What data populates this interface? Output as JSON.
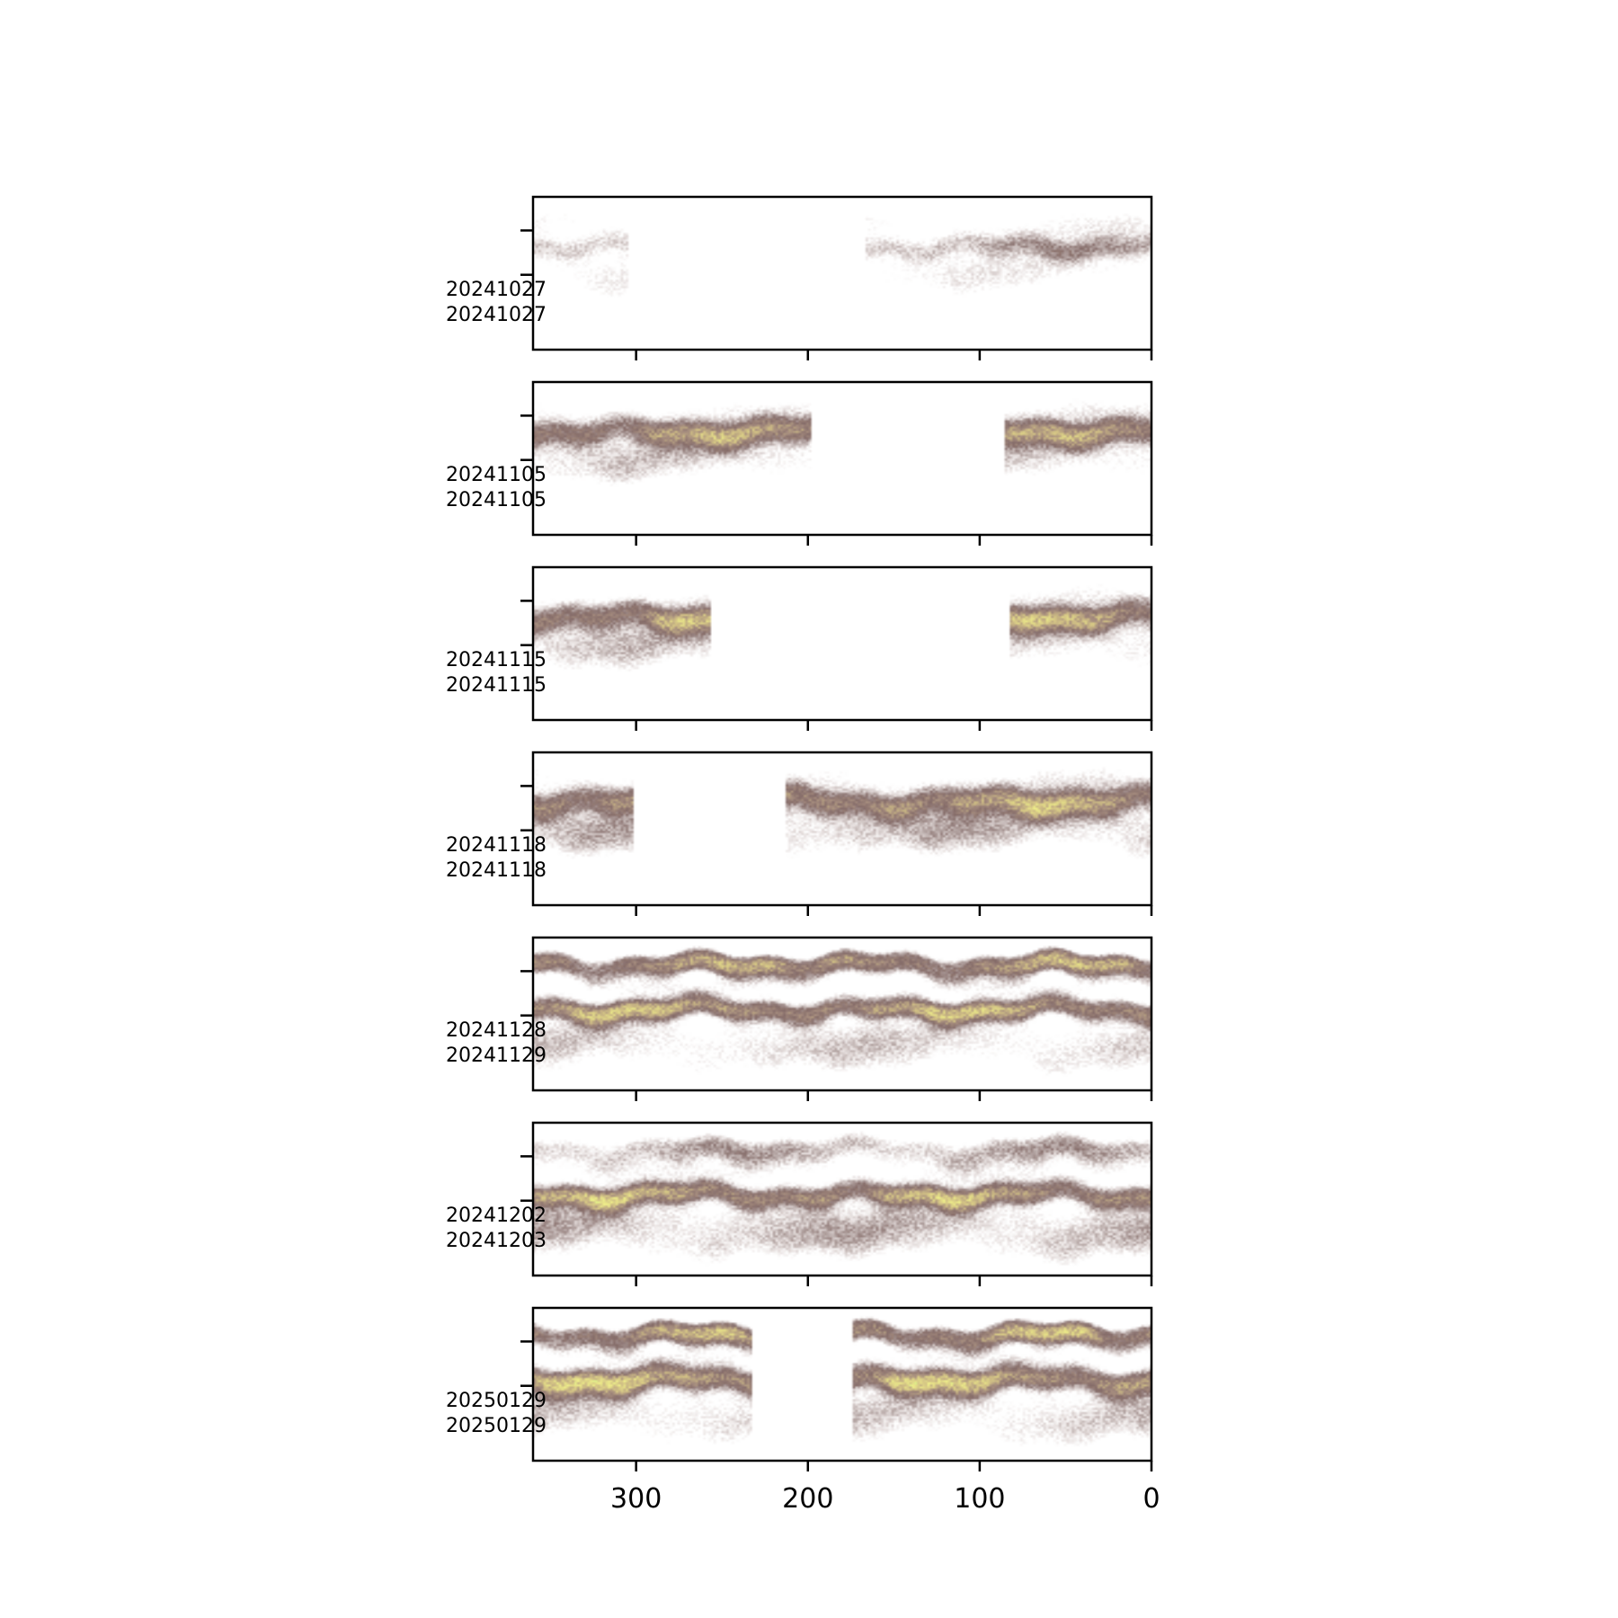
{
  "chart_data": {
    "type": "heatmap",
    "title": "",
    "xlabel": "",
    "ylabel": "",
    "x_axis": {
      "direction": "reversed",
      "xlim": [
        360,
        0
      ],
      "ticks": [
        300,
        200,
        100,
        0
      ],
      "tick_labels": [
        "300",
        "200",
        "100",
        "0"
      ]
    },
    "colormap": "terrain",
    "colormap_stops": [
      "#333399",
      "#0d80e6",
      "#1ad480",
      "#80e888",
      "#f0f08a",
      "#d2c185",
      "#a48b7e",
      "#856c69",
      "#b5a6a4",
      "#e7e0df",
      "#ffffff"
    ],
    "panels": [
      {
        "label_top": "20241027",
        "label_bottom": "20241027",
        "coverage": [
          [
            305,
            360
          ],
          [
            0,
            167
          ]
        ],
        "bands": [
          {
            "level": 0.82,
            "thickness": 0.18
          },
          {
            "level": 0.55,
            "thickness": 0.1
          },
          {
            "level": 0.72,
            "thickness": 0.35
          }
        ]
      },
      {
        "label_top": "20241105",
        "label_bottom": "20241105",
        "coverage": [
          [
            198,
            360
          ],
          [
            0,
            85
          ]
        ],
        "bands": [
          {
            "level": 0.88,
            "thickness": 0.2
          },
          {
            "level": 0.15,
            "thickness": 0.12
          },
          {
            "level": 0.62,
            "thickness": 0.35
          }
        ]
      },
      {
        "label_top": "20241115",
        "label_bottom": "20241115",
        "coverage": [
          [
            257,
            360
          ],
          [
            0,
            83
          ]
        ],
        "bands": [
          {
            "level": 0.9,
            "thickness": 0.2
          },
          {
            "level": 0.12,
            "thickness": 0.12
          },
          {
            "level": 0.6,
            "thickness": 0.35
          }
        ]
      },
      {
        "label_top": "20241118",
        "label_bottom": "20241118",
        "coverage": [
          [
            302,
            360
          ],
          [
            0,
            213
          ]
        ],
        "bands": [
          {
            "level": 0.85,
            "thickness": 0.22
          },
          {
            "level": 0.12,
            "thickness": 0.12
          },
          {
            "level": 0.55,
            "thickness": 0.35
          }
        ]
      },
      {
        "label_top": "20241128",
        "label_bottom": "20241129",
        "coverage": [
          [
            0,
            360
          ]
        ],
        "bands": [
          {
            "level": 0.2,
            "thickness": 0.12
          },
          {
            "level": 0.85,
            "thickness": 0.14
          },
          {
            "level": 0.15,
            "thickness": 0.1
          },
          {
            "level": 0.62,
            "thickness": 0.35
          }
        ]
      },
      {
        "label_top": "20241202",
        "label_bottom": "20241203",
        "coverage": [
          [
            0,
            360
          ]
        ],
        "bands": [
          {
            "level": 0.5,
            "thickness": 0.15
          },
          {
            "level": 0.88,
            "thickness": 0.2
          },
          {
            "level": 0.13,
            "thickness": 0.1
          },
          {
            "level": 0.55,
            "thickness": 0.35
          }
        ]
      },
      {
        "label_top": "20250129",
        "label_bottom": "20250129",
        "coverage": [
          [
            232,
            360
          ],
          [
            0,
            174
          ]
        ],
        "bands": [
          {
            "level": 0.18,
            "thickness": 0.12
          },
          {
            "level": 0.88,
            "thickness": 0.16
          },
          {
            "level": 0.1,
            "thickness": 0.12
          },
          {
            "level": 0.6,
            "thickness": 0.35
          }
        ]
      }
    ]
  }
}
